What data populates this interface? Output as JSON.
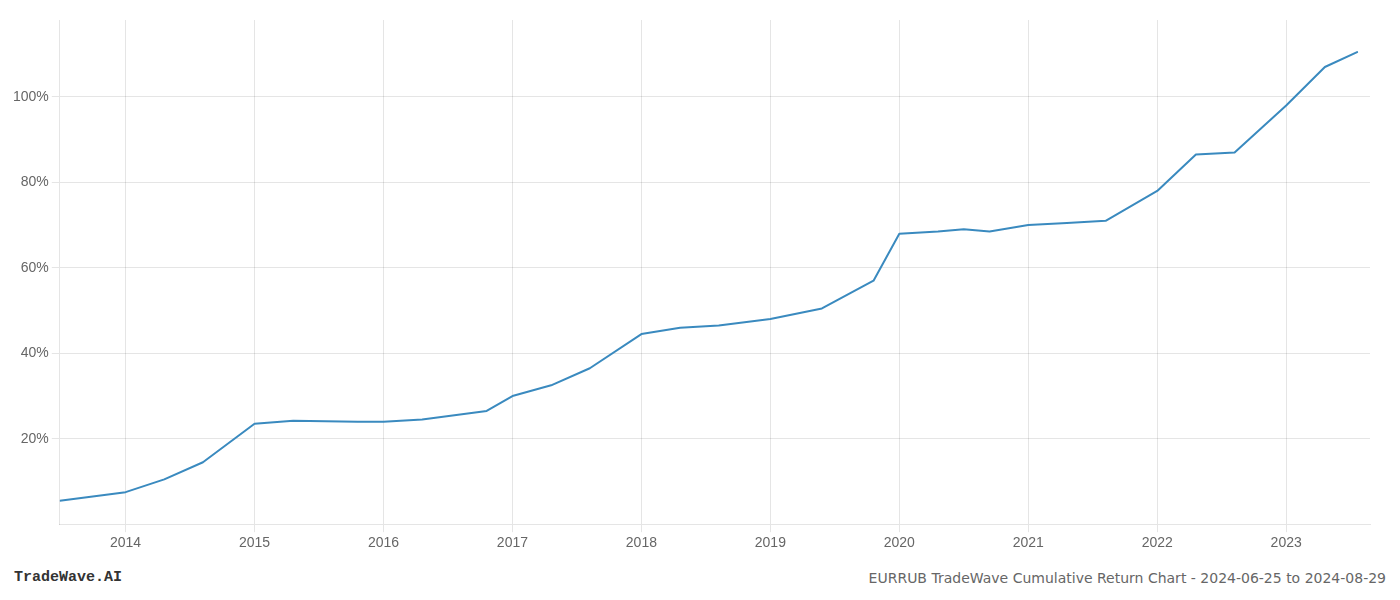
{
  "chart_data": {
    "type": "line",
    "x": [
      2013.49,
      2014.0,
      2014.3,
      2014.6,
      2015.0,
      2015.3,
      2015.8,
      2016.0,
      2016.3,
      2016.8,
      2017.0,
      2017.3,
      2017.6,
      2018.0,
      2018.3,
      2018.6,
      2019.0,
      2019.4,
      2019.8,
      2020.0,
      2020.3,
      2020.5,
      2020.7,
      2021.0,
      2021.3,
      2021.6,
      2022.0,
      2022.3,
      2022.6,
      2023.0,
      2023.3,
      2023.55
    ],
    "values": [
      5.5,
      7.5,
      10.5,
      14.5,
      23.5,
      24.2,
      24.0,
      24.0,
      24.5,
      26.5,
      30.0,
      32.5,
      36.5,
      44.5,
      46.0,
      46.5,
      48.0,
      50.5,
      57.0,
      68.0,
      68.5,
      69.0,
      68.5,
      70.0,
      70.5,
      71.0,
      78.0,
      86.5,
      87.0,
      98.0,
      107.0,
      110.5
    ],
    "color": "#3a8abf",
    "xlim": [
      2013.49,
      2023.65
    ],
    "ylim": [
      0,
      118
    ],
    "xticks": [
      2014,
      2015,
      2016,
      2017,
      2018,
      2019,
      2020,
      2021,
      2022,
      2023
    ],
    "yticks": [
      {
        "value": 20,
        "label": "20%"
      },
      {
        "value": 40,
        "label": "40%"
      },
      {
        "value": 60,
        "label": "60%"
      },
      {
        "value": 80,
        "label": "80%"
      },
      {
        "value": 100,
        "label": "100%"
      }
    ],
    "grid": true,
    "annotations": [
      "TradeWave.AI",
      "EURRUB TradeWave Cumulative Return Chart - 2024-06-25 to 2024-08-29"
    ]
  }
}
